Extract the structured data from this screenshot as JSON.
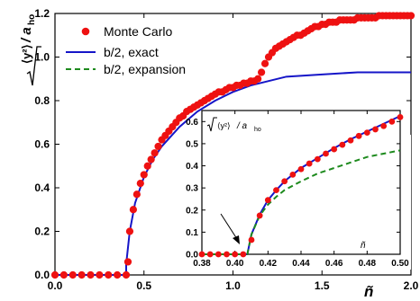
{
  "chart_data": [
    {
      "type": "scatter",
      "xlabel": "ñ",
      "ylabel": "√⟨y²⟩ / a_ho",
      "xlim": [
        0.0,
        2.0
      ],
      "ylim": [
        0.0,
        1.2
      ],
      "xticks": [
        "0.0",
        "0.5",
        "1.0",
        "1.5",
        "2.0"
      ],
      "yticks": [
        "0.0",
        "0.2",
        "0.4",
        "0.6",
        "0.8",
        "1.0",
        "1.2"
      ],
      "legend_position": "top-left",
      "series": [
        {
          "name": "Monte Carlo",
          "kind": "markers",
          "color": "#ee1111",
          "x": [
            0.0,
            0.05,
            0.1,
            0.15,
            0.2,
            0.25,
            0.3,
            0.35,
            0.4,
            0.41,
            0.42,
            0.44,
            0.46,
            0.48,
            0.5,
            0.52,
            0.54,
            0.56,
            0.58,
            0.6,
            0.62,
            0.64,
            0.66,
            0.68,
            0.7,
            0.72,
            0.74,
            0.76,
            0.78,
            0.8,
            0.82,
            0.84,
            0.86,
            0.88,
            0.9,
            0.92,
            0.94,
            0.96,
            0.98,
            1.0,
            1.02,
            1.04,
            1.06,
            1.08,
            1.1,
            1.12,
            1.14,
            1.16,
            1.18,
            1.2,
            1.22,
            1.24,
            1.26,
            1.28,
            1.3,
            1.32,
            1.34,
            1.36,
            1.38,
            1.4,
            1.42,
            1.44,
            1.46,
            1.48,
            1.5,
            1.52,
            1.54,
            1.56,
            1.58,
            1.6,
            1.62,
            1.64,
            1.66,
            1.68,
            1.7,
            1.72,
            1.74,
            1.76,
            1.78,
            1.8,
            1.82,
            1.84,
            1.86,
            1.88,
            1.9,
            1.92,
            1.94,
            1.96,
            1.98,
            2.0
          ],
          "y": [
            0.0,
            0.0,
            0.0,
            0.0,
            0.0,
            0.0,
            0.0,
            0.0,
            0.0,
            0.06,
            0.2,
            0.3,
            0.37,
            0.42,
            0.46,
            0.5,
            0.53,
            0.56,
            0.59,
            0.62,
            0.64,
            0.66,
            0.68,
            0.7,
            0.72,
            0.73,
            0.75,
            0.76,
            0.77,
            0.78,
            0.79,
            0.8,
            0.81,
            0.82,
            0.83,
            0.84,
            0.84,
            0.85,
            0.86,
            0.86,
            0.87,
            0.87,
            0.88,
            0.88,
            0.89,
            0.89,
            0.9,
            0.93,
            0.97,
            1.0,
            1.02,
            1.04,
            1.05,
            1.06,
            1.07,
            1.08,
            1.09,
            1.1,
            1.1,
            1.11,
            1.12,
            1.13,
            1.14,
            1.14,
            1.15,
            1.15,
            1.16,
            1.16,
            1.16,
            1.17,
            1.17,
            1.17,
            1.17,
            1.17,
            1.18,
            1.18,
            1.18,
            1.18,
            1.18,
            1.18,
            1.19,
            1.19,
            1.19,
            1.19,
            1.19,
            1.19,
            1.19,
            1.19,
            1.19,
            1.19
          ]
        },
        {
          "name": "b/2, exact",
          "kind": "line",
          "color": "#1515c8",
          "x": [
            0.0,
            0.4,
            0.4,
            0.42,
            0.45,
            0.5,
            0.55,
            0.6,
            0.7,
            0.8,
            0.9,
            1.0,
            1.1,
            1.2,
            1.3,
            1.5,
            1.7,
            2.0
          ],
          "y": [
            0.0,
            0.0,
            0.05,
            0.2,
            0.33,
            0.45,
            0.53,
            0.59,
            0.68,
            0.75,
            0.8,
            0.84,
            0.87,
            0.89,
            0.91,
            0.92,
            0.93,
            0.93
          ]
        },
        {
          "name": "b/2, expansion",
          "kind": "dashed",
          "color": "#1d8a1d",
          "x": [],
          "y": []
        }
      ]
    },
    {
      "type": "scatter",
      "inset": true,
      "xlabel": "ñ",
      "ylabel": "√⟨y²⟩ / a_ho",
      "xlim": [
        0.38,
        0.5
      ],
      "ylim": [
        0.0,
        0.65
      ],
      "xticks": [
        "0.38",
        "0.40",
        "0.42",
        "0.44",
        "0.46",
        "0.48",
        "0.50"
      ],
      "yticks": [
        "0.0",
        "0.1",
        "0.2",
        "0.3",
        "0.4",
        "0.5",
        "0.6"
      ],
      "series": [
        {
          "name": "Monte Carlo",
          "kind": "markers",
          "color": "#ee1111",
          "x": [
            0.38,
            0.385,
            0.39,
            0.395,
            0.4,
            0.405,
            0.41,
            0.415,
            0.42,
            0.425,
            0.43,
            0.435,
            0.44,
            0.445,
            0.45,
            0.455,
            0.46,
            0.465,
            0.47,
            0.475,
            0.48,
            0.485,
            0.49,
            0.495,
            0.5
          ],
          "y": [
            0.0,
            0.0,
            0.0,
            0.0,
            0.0,
            0.0,
            0.065,
            0.175,
            0.245,
            0.29,
            0.33,
            0.36,
            0.385,
            0.41,
            0.43,
            0.455,
            0.475,
            0.495,
            0.515,
            0.535,
            0.55,
            0.565,
            0.58,
            0.6,
            0.62
          ]
        },
        {
          "name": "b/2, exact",
          "kind": "line",
          "color": "#1515c8",
          "x": [
            0.38,
            0.4075,
            0.41,
            0.415,
            0.42,
            0.425,
            0.43,
            0.44,
            0.45,
            0.46,
            0.47,
            0.48,
            0.49,
            0.5
          ],
          "y": [
            0.0,
            0.0,
            0.09,
            0.18,
            0.245,
            0.29,
            0.33,
            0.39,
            0.435,
            0.48,
            0.52,
            0.555,
            0.59,
            0.625
          ]
        },
        {
          "name": "b/2, expansion",
          "kind": "dashed",
          "color": "#1d8a1d",
          "x": [
            0.38,
            0.4075,
            0.41,
            0.415,
            0.42,
            0.425,
            0.43,
            0.44,
            0.45,
            0.46,
            0.47,
            0.48,
            0.49,
            0.5
          ],
          "y": [
            0.0,
            0.0,
            0.09,
            0.175,
            0.225,
            0.26,
            0.29,
            0.33,
            0.365,
            0.39,
            0.415,
            0.44,
            0.455,
            0.47
          ]
        }
      ]
    }
  ],
  "labels": {
    "ylabel_main": "/ a",
    "ylabel_main_sub": "ho",
    "ylabel_inset": "/ a",
    "ylabel_inset_sub": "ho",
    "xlabel": "ñ",
    "xlabel_inset": "ñ",
    "legend_mc": "Monte Carlo",
    "legend_exact": "b/2, exact",
    "legend_expansion": "b/2, expansion"
  }
}
